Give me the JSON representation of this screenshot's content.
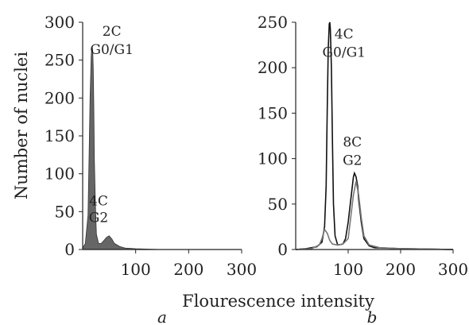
{
  "figure": {
    "xlabel": "Flourescence intensity",
    "ylabel": "Number of nuclei"
  },
  "chart_data": [
    {
      "type": "area",
      "panel_label": "a",
      "xlim": [
        0,
        300
      ],
      "ylim": [
        0,
        300
      ],
      "x_ticks": [
        100,
        200,
        300
      ],
      "y_ticks": [
        0,
        50,
        100,
        150,
        200,
        250,
        300
      ],
      "annotations": [
        {
          "text": "2C",
          "x": 55,
          "y": 282
        },
        {
          "text": "G0/G1",
          "x": 55,
          "y": 258
        },
        {
          "text": "4C",
          "x": 30,
          "y": 58
        },
        {
          "text": "G2",
          "x": 30,
          "y": 36
        }
      ],
      "series": [
        {
          "fill": "#555555",
          "x": [
            0,
            5,
            10,
            12,
            14,
            16,
            17,
            18,
            19,
            20,
            21,
            22,
            24,
            26,
            30,
            35,
            40,
            45,
            50,
            55,
            60,
            70,
            80,
            100,
            150,
            300
          ],
          "y": [
            2,
            8,
            45,
            120,
            200,
            255,
            265,
            268,
            262,
            240,
            190,
            120,
            60,
            20,
            8,
            8,
            12,
            16,
            18,
            14,
            8,
            4,
            2,
            1,
            0,
            0
          ]
        }
      ]
    },
    {
      "type": "line",
      "panel_label": "b",
      "xlim": [
        0,
        300
      ],
      "ylim": [
        0,
        250
      ],
      "x_ticks": [
        100,
        200,
        300
      ],
      "y_ticks": [
        0,
        50,
        100,
        150,
        200,
        250
      ],
      "annotations": [
        {
          "text": "4C",
          "x": 92,
          "y": 232
        },
        {
          "text": "G0/G1",
          "x": 92,
          "y": 212
        },
        {
          "text": "8C",
          "x": 108,
          "y": 113
        },
        {
          "text": "G2",
          "x": 108,
          "y": 93
        }
      ],
      "series": [
        {
          "color": "#111111",
          "x": [
            0,
            20,
            40,
            50,
            55,
            58,
            60,
            62,
            64,
            65,
            66,
            68,
            70,
            72,
            75,
            80,
            90,
            95,
            100,
            105,
            108,
            110,
            112,
            115,
            118,
            120,
            125,
            130,
            140,
            150,
            200,
            300
          ],
          "y": [
            0,
            1,
            3,
            8,
            25,
            70,
            150,
            220,
            248,
            250,
            242,
            200,
            120,
            50,
            15,
            5,
            6,
            12,
            30,
            55,
            70,
            80,
            84,
            80,
            70,
            55,
            30,
            12,
            4,
            2,
            1,
            0
          ]
        },
        {
          "color": "#777777",
          "x": [
            0,
            30,
            45,
            50,
            55,
            60,
            65,
            70,
            80,
            90,
            100,
            110,
            115,
            120,
            125,
            130,
            140,
            160,
            200,
            300
          ],
          "y": [
            0,
            1,
            5,
            12,
            22,
            18,
            10,
            6,
            5,
            6,
            12,
            60,
            75,
            60,
            35,
            15,
            5,
            2,
            1,
            0
          ]
        }
      ]
    }
  ]
}
